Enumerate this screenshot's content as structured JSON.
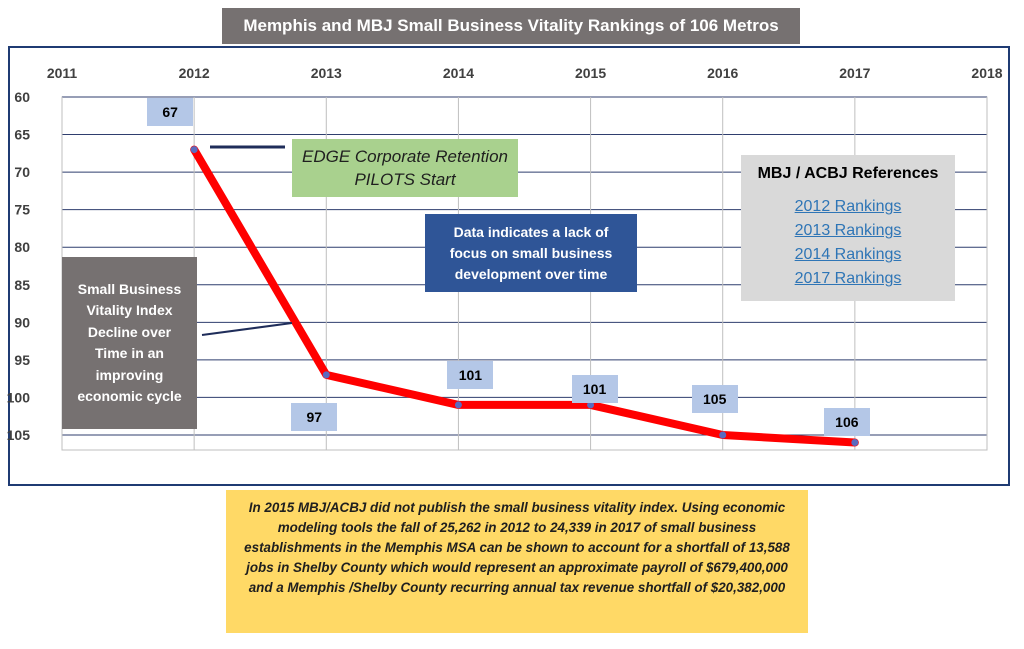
{
  "chart_data": {
    "type": "line",
    "title": "Memphis and MBJ Small Business Vitality Rankings of  106 Metros",
    "x_ticks": [
      "2011",
      "2012",
      "2013",
      "2014",
      "2015",
      "2016",
      "2017",
      "2018"
    ],
    "y_ticks": [
      "60",
      "65",
      "70",
      "75",
      "80",
      "85",
      "90",
      "95",
      "100",
      "105"
    ],
    "xlim": [
      2011,
      2018
    ],
    "ylim": [
      60,
      107
    ],
    "y_reversed": true,
    "x_axis_position": "top",
    "grid": true,
    "series": [
      {
        "x": [
          2012,
          2013,
          2014,
          2015,
          2016,
          2017
        ],
        "values": [
          67,
          97,
          101,
          101,
          105,
          106
        ],
        "labels": [
          "67",
          "97",
          "101",
          "101",
          "105",
          "106"
        ],
        "color": "#ff0000"
      }
    ]
  },
  "annotations": {
    "edge": "EDGE Corporate Retention PILOTS Start",
    "data_note": "Data indicates a lack of focus on small business development over time",
    "decline": "Small Business Vitality Index Decline over Time in an improving economic cycle"
  },
  "references": {
    "title": "MBJ / ACBJ References",
    "links": [
      "2012 Rankings ",
      "2013 Rankings",
      "2014 Rankings",
      "2017 Rankings"
    ],
    "link_color": "#2e75b6"
  },
  "footnote": "In 2015 MBJ/ACBJ did not publish the small business vitality index. Using economic modeling tools the fall of 25,262 in 2012 to 24,339 in 2017 of small business establishments in the Memphis MSA can be shown to account for a shortfall of 13,588 jobs in Shelby County which would represent an approximate payroll of $679,400,000 and a Memphis /Shelby County recurring annual tax revenue shortfall of $20,382,000"
}
